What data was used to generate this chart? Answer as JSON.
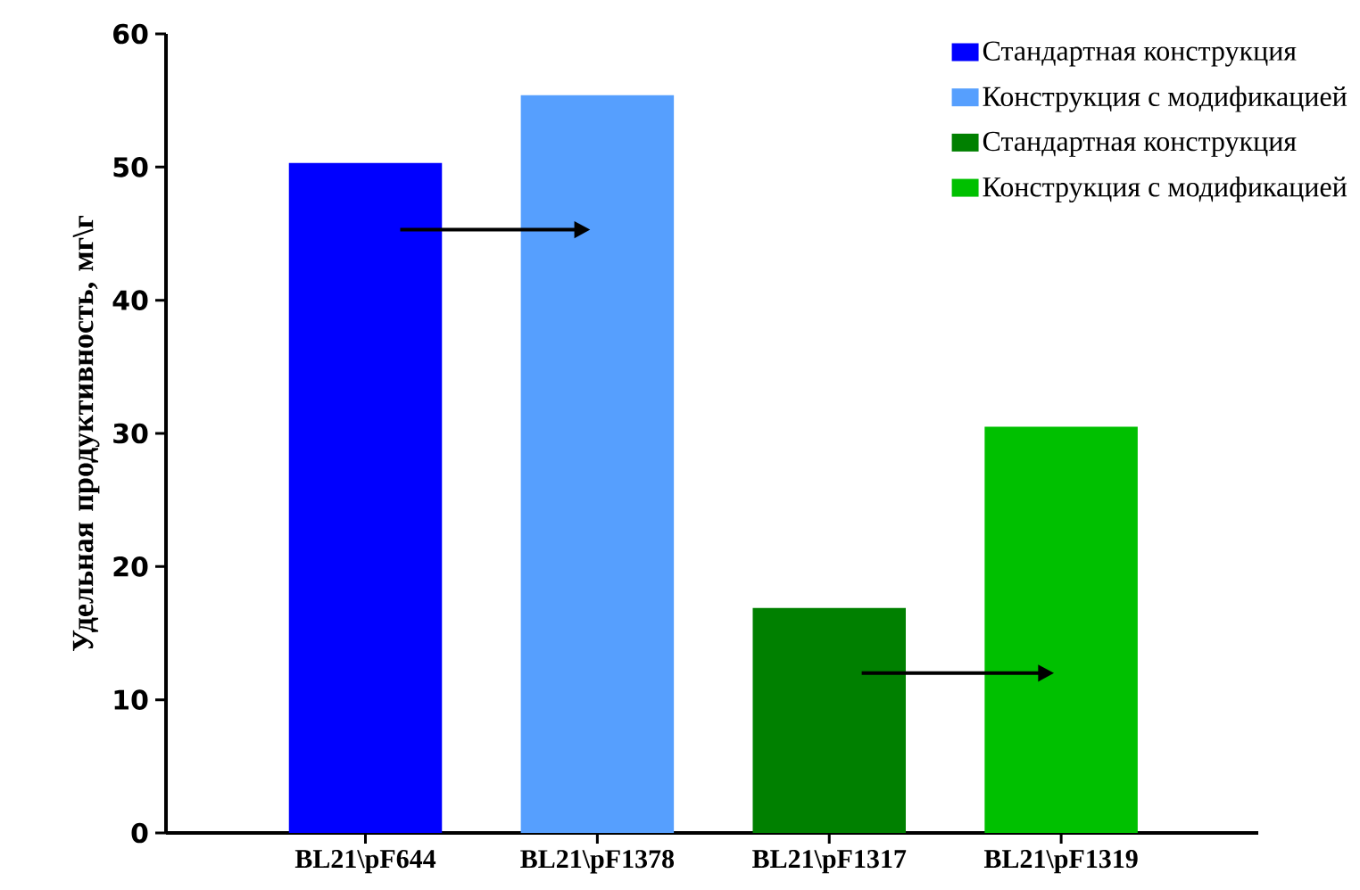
{
  "chart_data": {
    "type": "bar",
    "ylabel": "Удельная продуктивность, мг\\г",
    "categories": [
      "BL21\\pF644",
      "BL21\\pF1378",
      "BL21\\pF1317",
      "BL21\\pF1319"
    ],
    "series": [
      {
        "name": "Стандартная конструкция",
        "color": "#0000ff",
        "values": [
          50.3,
          null,
          null,
          null
        ]
      },
      {
        "name": "Конструкция с модификацией",
        "color": "#569ffe",
        "values": [
          null,
          55.4,
          null,
          null
        ]
      },
      {
        "name": "Стандартная конструкция",
        "color": "#008000",
        "values": [
          null,
          null,
          16.9,
          null
        ]
      },
      {
        "name": "Конструкция с модификацией",
        "color": "#00c000",
        "values": [
          null,
          null,
          null,
          30.5
        ]
      }
    ],
    "ylim": [
      0,
      60
    ],
    "yticks": [
      0,
      10,
      20,
      30,
      40,
      50,
      60
    ],
    "legend": "top right"
  }
}
